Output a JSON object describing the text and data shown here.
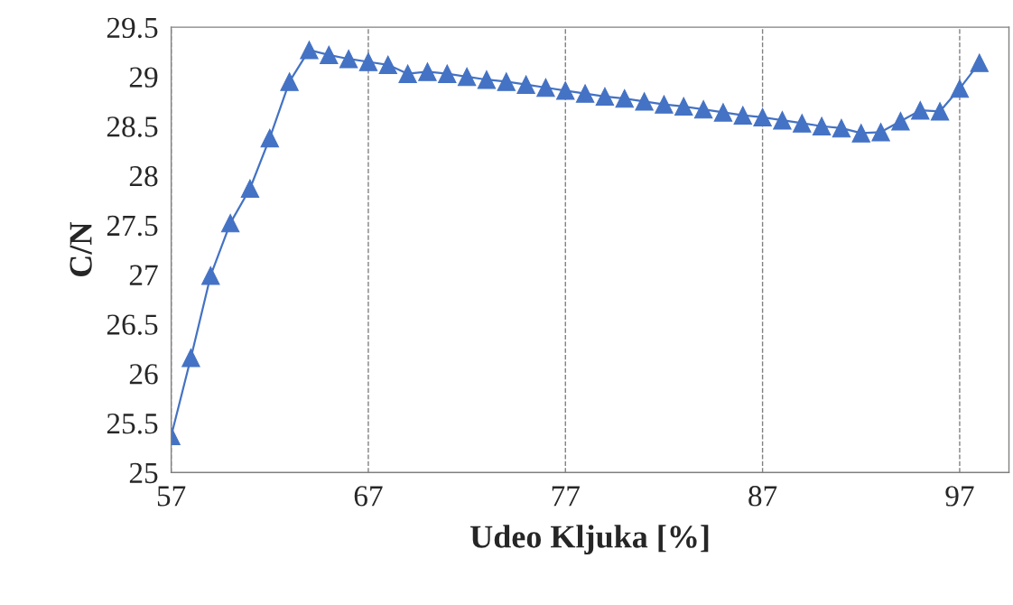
{
  "chart_data": {
    "type": "line",
    "xlabel": "Udeo Kljuka [%]",
    "ylabel": "C/N",
    "x": [
      57,
      58,
      59,
      60,
      61,
      62,
      63,
      64,
      65,
      66,
      67,
      68,
      69,
      70,
      71,
      72,
      73,
      74,
      75,
      76,
      77,
      78,
      79,
      80,
      81,
      82,
      83,
      84,
      85,
      86,
      87,
      88,
      89,
      90,
      91,
      92,
      93,
      94,
      95,
      96,
      97,
      98
    ],
    "series": [
      {
        "color": "#4472c4",
        "values": [
          25.37,
          26.16,
          26.99,
          27.52,
          27.87,
          28.38,
          28.95,
          29.27,
          29.22,
          29.18,
          29.15,
          29.12,
          29.03,
          29.05,
          29.03,
          29.0,
          28.97,
          28.95,
          28.92,
          28.89,
          28.86,
          28.83,
          28.8,
          28.78,
          28.75,
          28.72,
          28.7,
          28.67,
          28.64,
          28.61,
          28.59,
          28.56,
          28.53,
          28.5,
          28.48,
          28.43,
          28.44,
          28.55,
          28.66,
          28.65,
          28.88,
          29.14
        ]
      }
    ],
    "xlim": [
      57,
      99.5
    ],
    "xticks": [
      57,
      67,
      77,
      87,
      97
    ],
    "ylim": [
      25,
      29.5
    ],
    "yticks": [
      25,
      25.5,
      26,
      26.5,
      27,
      27.5,
      28,
      28.5,
      29,
      29.5
    ],
    "grid": "x",
    "marker": "triangle",
    "line_style": "solid",
    "legend": false
  }
}
